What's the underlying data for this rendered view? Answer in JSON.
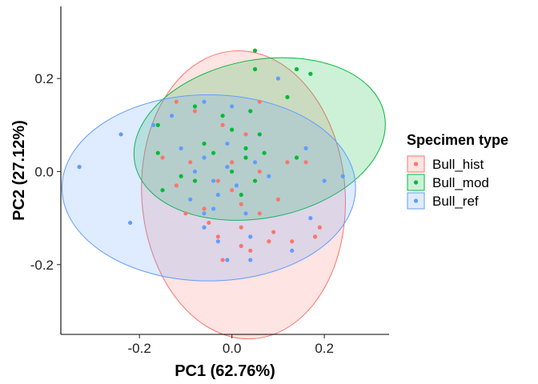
{
  "chart_data": {
    "type": "scatter",
    "title": "",
    "xlabel": "PC1 (62.76%)",
    "ylabel": "PC2 (27.12%)",
    "xlim": [
      -0.37,
      0.34
    ],
    "ylim": [
      -0.35,
      0.355
    ],
    "x_ticks": [
      -0.2,
      0.0,
      0.2
    ],
    "x_tick_labels": [
      "-0.2",
      "0.0",
      "0.2"
    ],
    "y_ticks": [
      -0.2,
      0.0,
      0.2
    ],
    "y_tick_labels": [
      "-0.2",
      "0.0",
      "0.2"
    ],
    "grid": false,
    "legend": {
      "title": "Specimen type",
      "position": "right"
    },
    "series": [
      {
        "name": "Bull_hist",
        "color": "#F8766D",
        "ellipse": {
          "cx": 0.025,
          "cy": -0.05,
          "rx": 0.22,
          "ry": 0.31,
          "angle_deg": -4
        },
        "points": [
          [
            -0.12,
            0.15
          ],
          [
            -0.08,
            0.13
          ],
          [
            -0.02,
            0.1
          ],
          [
            0.06,
            0.15
          ],
          [
            0.03,
            0.08
          ],
          [
            -0.15,
            0.03
          ],
          [
            -0.09,
            0.02
          ],
          [
            -0.12,
            -0.03
          ],
          [
            -0.03,
            -0.02
          ],
          [
            0.0,
            0.02
          ],
          [
            0.06,
            0.0
          ],
          [
            0.12,
            0.02
          ],
          [
            0.16,
            0.02
          ],
          [
            -0.1,
            -0.09
          ],
          [
            0.02,
            -0.07
          ],
          [
            0.06,
            -0.09
          ],
          [
            -0.05,
            -0.11
          ],
          [
            0.02,
            -0.12
          ],
          [
            0.09,
            -0.13
          ],
          [
            0.13,
            -0.15
          ],
          [
            0.18,
            -0.14
          ],
          [
            0.19,
            -0.12
          ],
          [
            0.08,
            -0.15
          ],
          [
            0.02,
            -0.16
          ],
          [
            -0.03,
            -0.14
          ],
          [
            0.04,
            -0.17
          ],
          [
            -0.02,
            -0.19
          ],
          [
            0.0,
            -0.04
          ],
          [
            -0.06,
            -0.08
          ],
          [
            0.1,
            -0.06
          ]
        ]
      },
      {
        "name": "Bull_mod",
        "color": "#00BA38",
        "ellipse": {
          "cx": 0.06,
          "cy": 0.07,
          "rx": 0.275,
          "ry": 0.17,
          "angle_deg": -11
        },
        "points": [
          [
            0.05,
            0.26
          ],
          [
            0.14,
            0.22
          ],
          [
            0.17,
            0.21
          ],
          [
            0.05,
            0.22
          ],
          [
            0.12,
            0.16
          ],
          [
            -0.16,
            0.1
          ],
          [
            -0.08,
            0.14
          ],
          [
            -0.02,
            0.12
          ],
          [
            0.04,
            0.13
          ],
          [
            0.0,
            0.09
          ],
          [
            0.06,
            0.08
          ],
          [
            -0.06,
            0.06
          ],
          [
            0.03,
            0.05
          ],
          [
            0.07,
            0.04
          ],
          [
            -0.16,
            0.04
          ],
          [
            -0.04,
            0.04
          ],
          [
            0.03,
            0.03
          ],
          [
            0.0,
            0.0
          ],
          [
            -0.08,
            -0.02
          ],
          [
            0.05,
            -0.02
          ],
          [
            0.14,
            0.03
          ],
          [
            -0.15,
            -0.04
          ],
          [
            -0.11,
            -0.01
          ],
          [
            0.02,
            -0.05
          ]
        ]
      },
      {
        "name": "Bull_ref",
        "color": "#619CFF",
        "ellipse": {
          "cx": -0.05,
          "cy": -0.035,
          "rx": 0.3175,
          "ry": 0.2,
          "angle_deg": 0
        },
        "points": [
          [
            -0.33,
            0.01
          ],
          [
            -0.24,
            0.08
          ],
          [
            -0.22,
            -0.11
          ],
          [
            -0.17,
            0.1
          ],
          [
            -0.13,
            0.12
          ],
          [
            0.1,
            0.2
          ],
          [
            -0.06,
            0.15
          ],
          [
            0.0,
            0.14
          ],
          [
            -0.11,
            0.05
          ],
          [
            -0.06,
            0.03
          ],
          [
            -0.08,
            0.0
          ],
          [
            -0.01,
            0.01
          ],
          [
            0.05,
            0.02
          ],
          [
            0.08,
            -0.01
          ],
          [
            -0.03,
            -0.05
          ],
          [
            -0.09,
            -0.06
          ],
          [
            -0.06,
            -0.09
          ],
          [
            -0.04,
            -0.08
          ],
          [
            0.03,
            -0.09
          ],
          [
            -0.06,
            -0.12
          ],
          [
            -0.03,
            -0.15
          ],
          [
            0.04,
            -0.14
          ],
          [
            -0.01,
            -0.19
          ],
          [
            0.04,
            -0.19
          ],
          [
            0.13,
            -0.17
          ],
          [
            0.17,
            -0.1
          ],
          [
            0.2,
            -0.02
          ],
          [
            0.24,
            -0.01
          ],
          [
            0.16,
            0.05
          ],
          [
            -0.04,
            -0.02
          ],
          [
            0.01,
            -0.03
          ],
          [
            -0.01,
            0.06
          ]
        ]
      }
    ]
  }
}
